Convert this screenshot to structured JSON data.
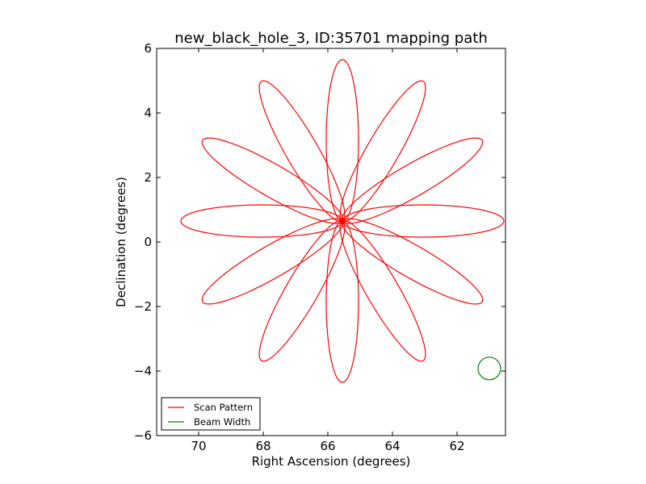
{
  "chart_data": {
    "type": "line",
    "title": "new_black_hole_3, ID:35701 mapping path",
    "xlabel": "Right Ascension (degrees)",
    "ylabel": "Declination (degrees)",
    "xlim": [
      71.3,
      60.5
    ],
    "ylim": [
      -6,
      6
    ],
    "xticks": [
      70,
      68,
      66,
      64,
      62
    ],
    "xtick_labels": [
      "70",
      "68",
      "66",
      "64",
      "62"
    ],
    "yticks": [
      -6,
      -4,
      -2,
      0,
      2,
      4,
      6
    ],
    "ytick_labels": [
      "−6",
      "−4",
      "−2",
      "0",
      "2",
      "4",
      "6"
    ],
    "series": [
      {
        "name": "Scan Pattern",
        "color": "#ff0000",
        "shape": "rose",
        "center": [
          65.55,
          0.65
        ],
        "petals": 12,
        "petal_length": 5.0,
        "petal_width": 1.0,
        "petal_angles_deg": [
          0,
          30,
          60,
          90,
          120,
          150,
          180,
          210,
          240,
          270,
          300,
          330
        ]
      },
      {
        "name": "Beam Width",
        "color": "#008000",
        "shape": "circle",
        "center": [
          61.0,
          -3.92
        ],
        "radius": 0.35
      }
    ],
    "legend": {
      "location": "lower-left",
      "entries": [
        "Scan Pattern",
        "Beam Width"
      ]
    }
  }
}
